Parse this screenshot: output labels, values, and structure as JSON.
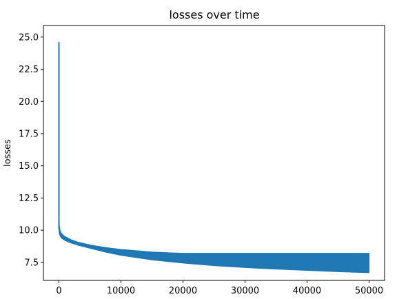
{
  "chart_data": {
    "type": "line",
    "title": "losses over time",
    "xlabel": "",
    "ylabel": "losses",
    "xlim": [
      -2500,
      52500
    ],
    "ylim": [
      6.1,
      25.9
    ],
    "x_ticks": [
      0,
      10000,
      20000,
      30000,
      40000,
      50000
    ],
    "y_ticks": [
      7.5,
      10.0,
      12.5,
      15.0,
      17.5,
      20.0,
      22.5,
      25.0
    ],
    "x_tick_labels": [
      "0",
      "10000",
      "20000",
      "30000",
      "40000",
      "50000"
    ],
    "y_tick_labels": [
      "7.5",
      "10.0",
      "12.5",
      "15.0",
      "17.5",
      "20.0",
      "22.5",
      "25.0"
    ],
    "grid": false,
    "legend": "none",
    "series_color": "#1f77b4",
    "series": [
      {
        "x": [
          0,
          20,
          50,
          100,
          200,
          400,
          700,
          1000,
          2000,
          3000,
          5000,
          7500,
          10000,
          15000,
          20000,
          25000,
          30000,
          35000,
          40000,
          45000,
          50000
        ],
        "upper": [
          24.6,
          14.0,
          10.4,
          10.2,
          9.95,
          9.75,
          9.6,
          9.5,
          9.25,
          9.08,
          8.85,
          8.65,
          8.5,
          8.3,
          8.2,
          8.2,
          8.2,
          8.2,
          8.2,
          8.2,
          8.2
        ],
        "lower": [
          10.1,
          9.95,
          9.8,
          9.7,
          9.55,
          9.4,
          9.3,
          9.2,
          9.0,
          8.85,
          8.6,
          8.3,
          8.05,
          7.7,
          7.45,
          7.25,
          7.1,
          6.98,
          6.88,
          6.78,
          6.7
        ]
      }
    ]
  }
}
